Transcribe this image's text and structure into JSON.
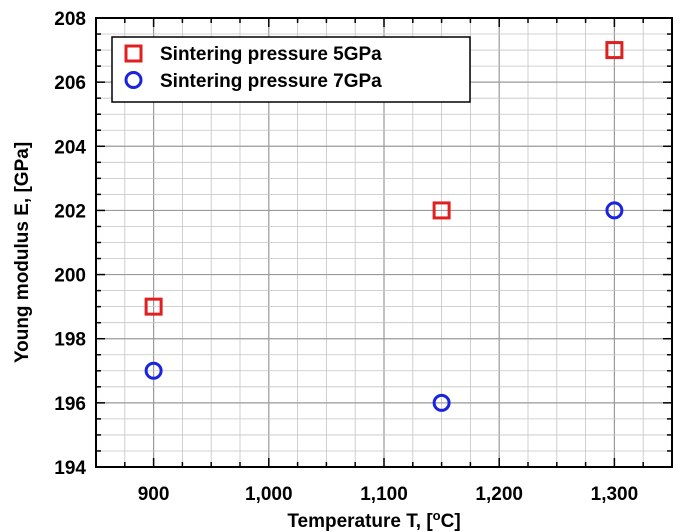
{
  "chart_data": {
    "type": "scatter",
    "xlabel": "Temperature T, [",
    "xlabel_sup": "o",
    "xlabel_end": "C]",
    "ylabel": "Young modulus E, [GPa]",
    "xlim": [
      850,
      1350
    ],
    "ylim": [
      194,
      208
    ],
    "x_ticks": [
      900,
      1000,
      1100,
      1200,
      1300
    ],
    "x_tick_labels": [
      "900",
      "1,000",
      "1,100",
      "1,200",
      "1,300"
    ],
    "y_ticks": [
      194,
      196,
      198,
      200,
      202,
      204,
      206,
      208
    ],
    "y_tick_labels": [
      "194",
      "196",
      "198",
      "200",
      "202",
      "204",
      "206",
      "208"
    ],
    "grid": true,
    "legend_position": "top-left",
    "series": [
      {
        "name": "Sintering pressure 5GPa",
        "marker": "square",
        "color": "#e02020",
        "points": [
          {
            "x": 900,
            "y": 199
          },
          {
            "x": 1150,
            "y": 202
          },
          {
            "x": 1300,
            "y": 207
          }
        ]
      },
      {
        "name": "Sintering pressure 7GPa",
        "marker": "circle",
        "color": "#1a24e0",
        "points": [
          {
            "x": 900,
            "y": 197
          },
          {
            "x": 1150,
            "y": 196
          },
          {
            "x": 1300,
            "y": 202
          }
        ]
      }
    ]
  }
}
